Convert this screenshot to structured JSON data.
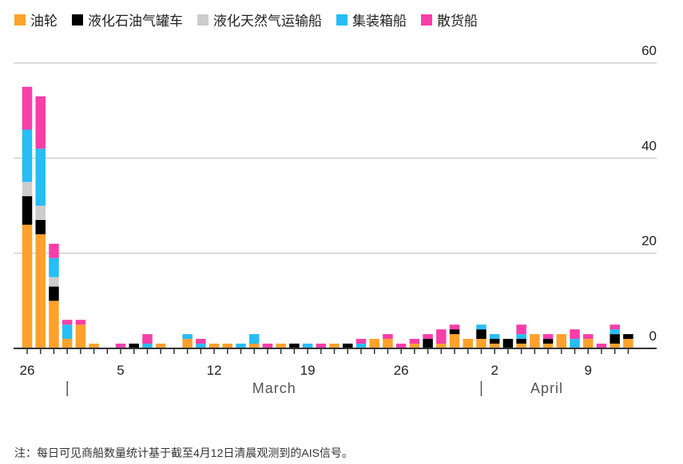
{
  "chart_data": {
    "type": "bar",
    "stacked": true,
    "categories": [
      "2-26",
      "2-27",
      "2-28",
      "3-1",
      "3-2",
      "3-3",
      "3-4",
      "3-5",
      "3-6",
      "3-7",
      "3-8",
      "3-9",
      "3-10",
      "3-11",
      "3-12",
      "3-13",
      "3-14",
      "3-15",
      "3-16",
      "3-17",
      "3-18",
      "3-19",
      "3-20",
      "3-21",
      "3-22",
      "3-23",
      "3-24",
      "3-25",
      "3-26",
      "3-27",
      "3-28",
      "3-29",
      "3-30",
      "3-31",
      "4-1",
      "4-2",
      "4-3",
      "4-4",
      "4-5",
      "4-6",
      "4-7",
      "4-8",
      "4-9",
      "4-10",
      "4-11",
      "4-12"
    ],
    "series": [
      {
        "name": "油轮",
        "color": "#ffa12b",
        "values": [
          26,
          24,
          10,
          2,
          5,
          1,
          0,
          0,
          0,
          0,
          1,
          0,
          2,
          0,
          1,
          1,
          0,
          1,
          0,
          1,
          0,
          0,
          0,
          1,
          0,
          0,
          2,
          2,
          0,
          1,
          0,
          1,
          3,
          2,
          2,
          1,
          0,
          1,
          3,
          1,
          3,
          0,
          2,
          0,
          1,
          2
        ]
      },
      {
        "name": "液化石油气罐车",
        "color": "#000000",
        "values": [
          6,
          3,
          3,
          0,
          0,
          0,
          0,
          0,
          1,
          0,
          0,
          0,
          0,
          0,
          0,
          0,
          0,
          0,
          0,
          0,
          1,
          0,
          0,
          0,
          1,
          0,
          0,
          0,
          0,
          0,
          2,
          0,
          1,
          0,
          2,
          1,
          2,
          1,
          0,
          1,
          0,
          0,
          0,
          0,
          2,
          1
        ]
      },
      {
        "name": "液化天然气运输船",
        "color": "#cccccc",
        "values": [
          3,
          3,
          2,
          0,
          0,
          0,
          0,
          0,
          0,
          0,
          0,
          0,
          0,
          0,
          0,
          0,
          0,
          0,
          0,
          0,
          0,
          0,
          0,
          0,
          0,
          0,
          0,
          0,
          0,
          0,
          0,
          0,
          0,
          0,
          0,
          0,
          0,
          0,
          0,
          0,
          0,
          0,
          0,
          0,
          0,
          0
        ]
      },
      {
        "name": "集装箱船",
        "color": "#27bdf5",
        "values": [
          11,
          12,
          4,
          3,
          0,
          0,
          0,
          0,
          0,
          1,
          0,
          0,
          1,
          1,
          0,
          0,
          1,
          2,
          0,
          0,
          0,
          1,
          0,
          0,
          0,
          1,
          0,
          0,
          0,
          0,
          0,
          0,
          0,
          0,
          1,
          1,
          0,
          1,
          0,
          0,
          0,
          2,
          0,
          0,
          1,
          0
        ]
      },
      {
        "name": "散货船",
        "color": "#f83ea9",
        "values": [
          9,
          11,
          3,
          1,
          1,
          0,
          0,
          1,
          0,
          2,
          0,
          0,
          0,
          1,
          0,
          0,
          0,
          0,
          1,
          0,
          0,
          0,
          1,
          0,
          0,
          1,
          0,
          1,
          1,
          1,
          1,
          3,
          1,
          0,
          0,
          0,
          0,
          2,
          0,
          1,
          0,
          2,
          1,
          1,
          1,
          0
        ]
      }
    ],
    "x_tick_labels": [
      {
        "day": "2-26",
        "label": "26"
      },
      {
        "day": "3-5",
        "label": "5"
      },
      {
        "day": "3-12",
        "label": "12"
      },
      {
        "day": "3-19",
        "label": "19"
      },
      {
        "day": "3-26",
        "label": "26"
      },
      {
        "day": "4-2",
        "label": "2"
      },
      {
        "day": "4-9",
        "label": "9"
      }
    ],
    "month_labels": [
      "March",
      "April"
    ],
    "y_ticks": [
      0,
      20,
      40,
      60
    ],
    "ylim": [
      0,
      60
    ],
    "grid": true,
    "legend": "top-left",
    "note": "注：每日可见商船数量统计基于截至4月12日清晨观测到的AIS信号。"
  }
}
